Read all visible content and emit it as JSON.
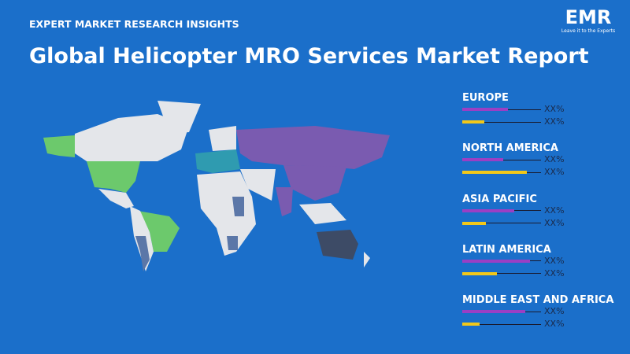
{
  "header": {
    "kicker": "EXPERT MARKET RESEARCH INSIGHTS",
    "title": "Global Helicopter MRO Services Market Report"
  },
  "logo": {
    "name": "EMR",
    "tagline": "Leave it to the Experts"
  },
  "regions": [
    {
      "name": "EUROPE",
      "labels": [
        "XX%",
        "XX%"
      ]
    },
    {
      "name": "NORTH AMERICA",
      "labels": [
        "XX%",
        "XX%"
      ]
    },
    {
      "name": "ASIA PACIFIC",
      "labels": [
        "XX%",
        "XX%"
      ]
    },
    {
      "name": "LATIN AMERICA",
      "labels": [
        "XX%",
        "XX%"
      ]
    },
    {
      "name": "MIDDLE EAST AND AFRICA",
      "labels": [
        "XX%",
        "XX%"
      ]
    }
  ]
}
